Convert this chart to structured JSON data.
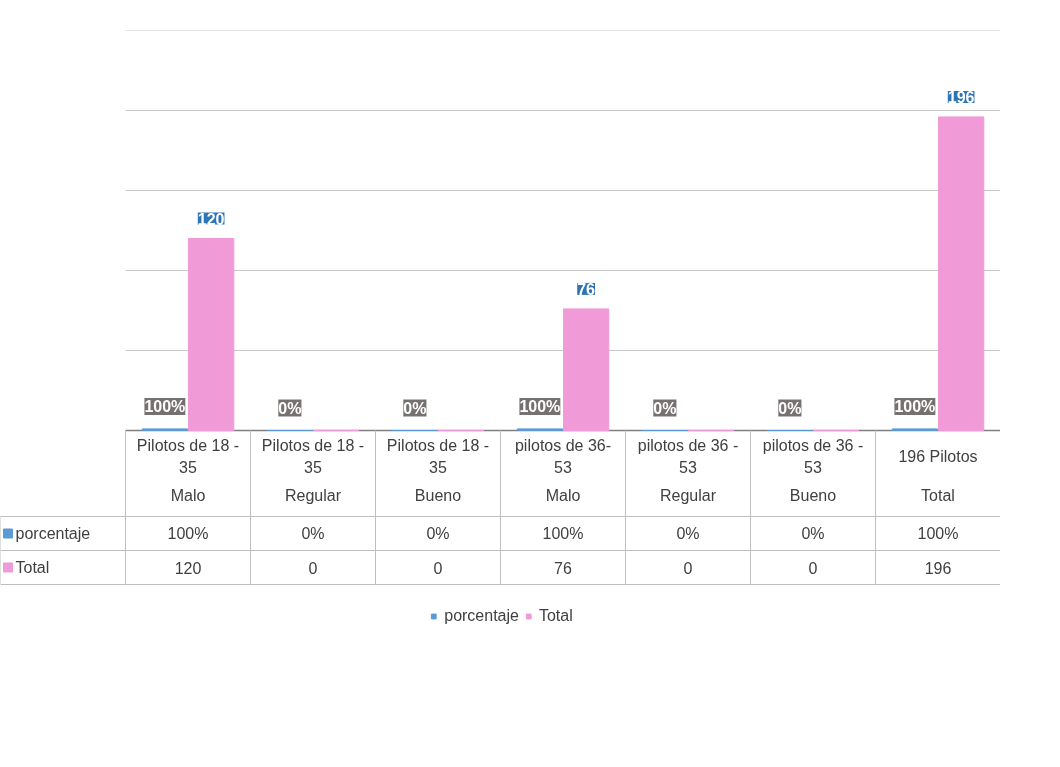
{
  "chart_data": {
    "type": "bar",
    "categories": [
      "Pilotos de 18 - 35\nMalo",
      "Pilotos de 18 - 35\nRegular",
      "Pilotos de 18 - 35\nBueno",
      "pilotos de 36-53\nMalo",
      "pilotos de 36 - 53\nRegular",
      "pilotos de 36 - 53\nBueno",
      "196 Pilotos\nTotal"
    ],
    "series": [
      {
        "name": "porcentaje",
        "color": "#5b9bd5",
        "values": [
          1,
          0,
          0,
          1,
          0,
          0,
          1
        ],
        "value_labels": [
          "100%",
          "0%",
          "0%",
          "100%",
          "0%",
          "0%",
          "100%"
        ]
      },
      {
        "name": "Total",
        "color": "#f09bd7",
        "values": [
          120,
          0,
          0,
          76,
          0,
          0,
          196
        ],
        "value_labels": [
          "120",
          "0",
          "0",
          "76",
          "0",
          "0",
          "196"
        ]
      }
    ],
    "ylim": [
      0,
      250
    ],
    "yticks": [
      {
        "value": 50,
        "label": null
      },
      {
        "value": 100,
        "label": null
      },
      {
        "value": 150,
        "label": null
      },
      {
        "value": 200,
        "label": null
      },
      {
        "value": 250,
        "label": null
      }
    ],
    "grid": "y",
    "tick_labels": "x",
    "data_labels": true,
    "legend": "bottom"
  }
}
